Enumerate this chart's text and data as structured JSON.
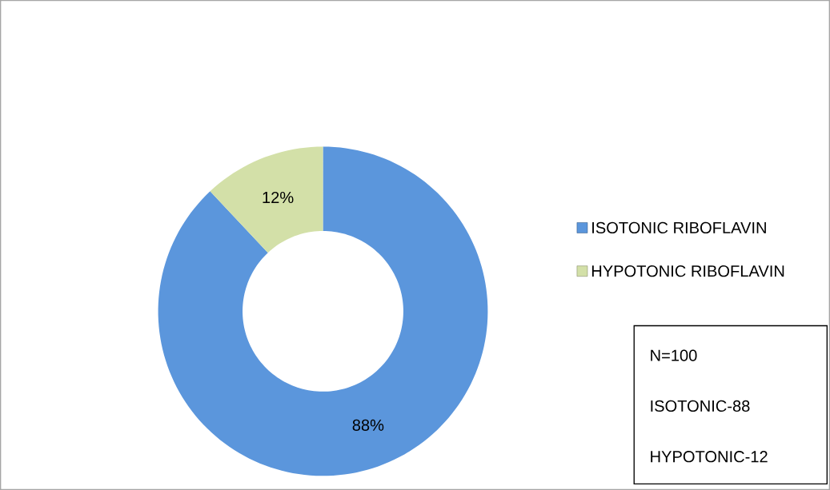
{
  "chart_data": {
    "type": "donut",
    "categories": [
      "ISOTONIC RIBOFLAVIN",
      "HYPOTONIC RIBOFLAVIN"
    ],
    "values": [
      88,
      12
    ],
    "colors": [
      "#5b96dc",
      "#d3e0a8"
    ],
    "value_labels": [
      "88%",
      "12%"
    ],
    "legend": "right",
    "annotations": [
      "N=100",
      "ISOTONIC-88",
      "HYPOTONIC-12"
    ]
  }
}
